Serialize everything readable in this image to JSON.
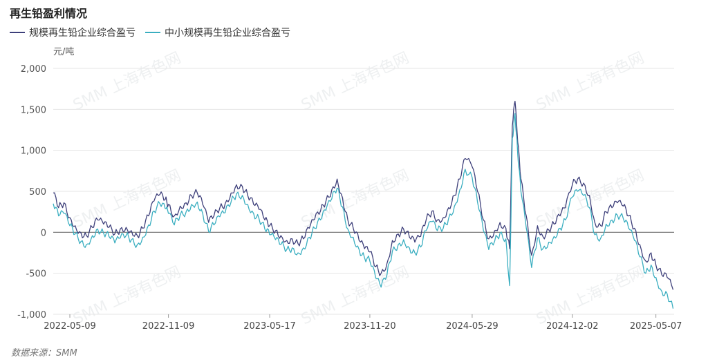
{
  "title": "再生铅盈利情况",
  "source": "数据来源：SMM",
  "watermark": "SMM 上海有色网",
  "chart_data": {
    "type": "line",
    "unit": "元/吨",
    "ylim": [
      -1000,
      2000
    ],
    "yticks": [
      -1000,
      -500,
      0,
      500,
      1000,
      1500,
      2000
    ],
    "ytick_labels": [
      "-1,000",
      "-500",
      "0",
      "500",
      "1,000",
      "1,500",
      "2,000"
    ],
    "xlim": [
      "2022-04-08",
      "2025-06-10"
    ],
    "xticks": [
      "2022-05-09",
      "2022-11-09",
      "2023-05-17",
      "2023-11-20",
      "2024-05-29",
      "2024-12-02",
      "2025-05-07"
    ],
    "grid": true,
    "legend": "top-left",
    "series": [
      {
        "name": "规模再生铅企业综合盈亏",
        "color": "#3d3f7a",
        "points": [
          [
            "2022-04-08",
            480
          ],
          [
            "2022-04-18",
            300
          ],
          [
            "2022-04-28",
            360
          ],
          [
            "2022-05-09",
            180
          ],
          [
            "2022-05-19",
            80
          ],
          [
            "2022-05-30",
            -10
          ],
          [
            "2022-06-09",
            -40
          ],
          [
            "2022-06-20",
            60
          ],
          [
            "2022-06-30",
            150
          ],
          [
            "2022-07-11",
            100
          ],
          [
            "2022-07-21",
            60
          ],
          [
            "2022-08-01",
            -20
          ],
          [
            "2022-08-11",
            40
          ],
          [
            "2022-08-22",
            60
          ],
          [
            "2022-09-01",
            20
          ],
          [
            "2022-09-12",
            -40
          ],
          [
            "2022-09-22",
            50
          ],
          [
            "2022-10-03",
            200
          ],
          [
            "2022-10-13",
            380
          ],
          [
            "2022-10-24",
            460
          ],
          [
            "2022-11-03",
            400
          ],
          [
            "2022-11-09",
            340
          ],
          [
            "2022-11-20",
            200
          ],
          [
            "2022-12-01",
            320
          ],
          [
            "2022-12-12",
            360
          ],
          [
            "2022-12-22",
            450
          ],
          [
            "2023-01-02",
            480
          ],
          [
            "2023-01-12",
            340
          ],
          [
            "2023-01-23",
            120
          ],
          [
            "2023-02-02",
            200
          ],
          [
            "2023-02-13",
            300
          ],
          [
            "2023-02-23",
            350
          ],
          [
            "2023-03-06",
            480
          ],
          [
            "2023-03-16",
            580
          ],
          [
            "2023-03-27",
            560
          ],
          [
            "2023-04-06",
            450
          ],
          [
            "2023-04-17",
            340
          ],
          [
            "2023-04-27",
            280
          ],
          [
            "2023-05-08",
            150
          ],
          [
            "2023-05-17",
            80
          ],
          [
            "2023-05-28",
            20
          ],
          [
            "2023-06-07",
            -40
          ],
          [
            "2023-06-18",
            -100
          ],
          [
            "2023-06-28",
            -80
          ],
          [
            "2023-07-09",
            -140
          ],
          [
            "2023-07-19",
            -80
          ],
          [
            "2023-07-30",
            50
          ],
          [
            "2023-08-09",
            160
          ],
          [
            "2023-08-20",
            260
          ],
          [
            "2023-08-30",
            380
          ],
          [
            "2023-09-10",
            520
          ],
          [
            "2023-09-20",
            650
          ],
          [
            "2023-09-30",
            420
          ],
          [
            "2023-10-10",
            150
          ],
          [
            "2023-10-20",
            50
          ],
          [
            "2023-10-31",
            -100
          ],
          [
            "2023-11-10",
            -200
          ],
          [
            "2023-11-20",
            -240
          ],
          [
            "2023-12-01",
            -420
          ],
          [
            "2023-12-11",
            -500
          ],
          [
            "2023-12-22",
            -380
          ],
          [
            "2024-01-01",
            -100
          ],
          [
            "2024-01-12",
            -20
          ],
          [
            "2024-01-22",
            40
          ],
          [
            "2024-02-02",
            -60
          ],
          [
            "2024-02-12",
            -120
          ],
          [
            "2024-02-23",
            -50
          ],
          [
            "2024-03-04",
            150
          ],
          [
            "2024-03-15",
            260
          ],
          [
            "2024-03-25",
            150
          ],
          [
            "2024-04-05",
            180
          ],
          [
            "2024-04-15",
            300
          ],
          [
            "2024-04-26",
            450
          ],
          [
            "2024-05-06",
            650
          ],
          [
            "2024-05-16",
            900
          ],
          [
            "2024-05-29",
            800
          ],
          [
            "2024-06-08",
            500
          ],
          [
            "2024-06-19",
            150
          ],
          [
            "2024-06-29",
            -80
          ],
          [
            "2024-07-10",
            20
          ],
          [
            "2024-07-20",
            120
          ],
          [
            "2024-07-31",
            50
          ],
          [
            "2024-08-07",
            -200
          ],
          [
            "2024-08-12",
            1300
          ],
          [
            "2024-08-17",
            1600
          ],
          [
            "2024-08-22",
            1100
          ],
          [
            "2024-08-28",
            650
          ],
          [
            "2024-09-07",
            200
          ],
          [
            "2024-09-17",
            -280
          ],
          [
            "2024-09-28",
            80
          ],
          [
            "2024-10-08",
            -50
          ],
          [
            "2024-10-19",
            30
          ],
          [
            "2024-10-29",
            100
          ],
          [
            "2024-11-09",
            200
          ],
          [
            "2024-11-19",
            300
          ],
          [
            "2024-12-02",
            580
          ],
          [
            "2024-12-12",
            650
          ],
          [
            "2024-12-23",
            600
          ],
          [
            "2025-01-03",
            450
          ],
          [
            "2025-01-13",
            120
          ],
          [
            "2025-01-24",
            80
          ],
          [
            "2025-02-03",
            250
          ],
          [
            "2025-02-14",
            300
          ],
          [
            "2025-02-24",
            360
          ],
          [
            "2025-03-07",
            320
          ],
          [
            "2025-03-17",
            200
          ],
          [
            "2025-03-28",
            50
          ],
          [
            "2025-04-07",
            -150
          ],
          [
            "2025-04-18",
            -350
          ],
          [
            "2025-04-28",
            -250
          ],
          [
            "2025-05-07",
            -400
          ],
          [
            "2025-05-18",
            -520
          ],
          [
            "2025-05-28",
            -550
          ],
          [
            "2025-06-08",
            -700
          ]
        ]
      },
      {
        "name": "中小规模再生铅企业综合盈亏",
        "color": "#3aaec0",
        "points": [
          [
            "2022-04-08",
            350
          ],
          [
            "2022-04-18",
            200
          ],
          [
            "2022-04-28",
            230
          ],
          [
            "2022-05-09",
            80
          ],
          [
            "2022-05-19",
            -20
          ],
          [
            "2022-05-30",
            -110
          ],
          [
            "2022-06-09",
            -150
          ],
          [
            "2022-06-20",
            -40
          ],
          [
            "2022-06-30",
            40
          ],
          [
            "2022-07-11",
            -10
          ],
          [
            "2022-07-21",
            -50
          ],
          [
            "2022-08-01",
            -130
          ],
          [
            "2022-08-11",
            -70
          ],
          [
            "2022-08-22",
            -40
          ],
          [
            "2022-09-01",
            -90
          ],
          [
            "2022-09-12",
            -150
          ],
          [
            "2022-09-22",
            -60
          ],
          [
            "2022-10-03",
            90
          ],
          [
            "2022-10-13",
            260
          ],
          [
            "2022-10-24",
            350
          ],
          [
            "2022-11-03",
            290
          ],
          [
            "2022-11-09",
            230
          ],
          [
            "2022-11-20",
            90
          ],
          [
            "2022-12-01",
            210
          ],
          [
            "2022-12-12",
            250
          ],
          [
            "2022-12-22",
            340
          ],
          [
            "2023-01-02",
            370
          ],
          [
            "2023-01-12",
            230
          ],
          [
            "2023-01-23",
            10
          ],
          [
            "2023-02-02",
            90
          ],
          [
            "2023-02-13",
            190
          ],
          [
            "2023-02-23",
            240
          ],
          [
            "2023-03-06",
            370
          ],
          [
            "2023-03-16",
            470
          ],
          [
            "2023-03-27",
            450
          ],
          [
            "2023-04-06",
            340
          ],
          [
            "2023-04-17",
            230
          ],
          [
            "2023-04-27",
            170
          ],
          [
            "2023-05-08",
            40
          ],
          [
            "2023-05-17",
            -30
          ],
          [
            "2023-05-28",
            -90
          ],
          [
            "2023-06-07",
            -150
          ],
          [
            "2023-06-18",
            -210
          ],
          [
            "2023-06-28",
            -190
          ],
          [
            "2023-07-09",
            -250
          ],
          [
            "2023-07-19",
            -190
          ],
          [
            "2023-07-30",
            -60
          ],
          [
            "2023-08-09",
            50
          ],
          [
            "2023-08-20",
            150
          ],
          [
            "2023-08-30",
            270
          ],
          [
            "2023-09-10",
            410
          ],
          [
            "2023-09-20",
            540
          ],
          [
            "2023-09-30",
            310
          ],
          [
            "2023-10-10",
            40
          ],
          [
            "2023-10-20",
            -60
          ],
          [
            "2023-10-31",
            -210
          ],
          [
            "2023-11-10",
            -310
          ],
          [
            "2023-11-20",
            -350
          ],
          [
            "2023-12-01",
            -560
          ],
          [
            "2023-12-11",
            -670
          ],
          [
            "2023-12-22",
            -520
          ],
          [
            "2024-01-01",
            -230
          ],
          [
            "2024-01-12",
            -150
          ],
          [
            "2024-01-22",
            -90
          ],
          [
            "2024-02-02",
            -190
          ],
          [
            "2024-02-12",
            -250
          ],
          [
            "2024-02-23",
            -180
          ],
          [
            "2024-03-04",
            20
          ],
          [
            "2024-03-15",
            130
          ],
          [
            "2024-03-25",
            20
          ],
          [
            "2024-04-05",
            50
          ],
          [
            "2024-04-15",
            170
          ],
          [
            "2024-04-26",
            320
          ],
          [
            "2024-05-06",
            520
          ],
          [
            "2024-05-16",
            770
          ],
          [
            "2024-05-29",
            670
          ],
          [
            "2024-06-08",
            370
          ],
          [
            "2024-06-19",
            20
          ],
          [
            "2024-06-29",
            -210
          ],
          [
            "2024-07-10",
            -110
          ],
          [
            "2024-07-20",
            -10
          ],
          [
            "2024-07-31",
            -80
          ],
          [
            "2024-08-07",
            -650
          ],
          [
            "2024-08-12",
            1150
          ],
          [
            "2024-08-17",
            1450
          ],
          [
            "2024-08-22",
            950
          ],
          [
            "2024-08-28",
            500
          ],
          [
            "2024-09-07",
            50
          ],
          [
            "2024-09-17",
            -430
          ],
          [
            "2024-09-28",
            -70
          ],
          [
            "2024-10-08",
            -200
          ],
          [
            "2024-10-19",
            -120
          ],
          [
            "2024-10-29",
            -50
          ],
          [
            "2024-11-09",
            50
          ],
          [
            "2024-11-19",
            150
          ],
          [
            "2024-12-02",
            430
          ],
          [
            "2024-12-12",
            500
          ],
          [
            "2024-12-23",
            450
          ],
          [
            "2025-01-03",
            300
          ],
          [
            "2025-01-13",
            -30
          ],
          [
            "2025-01-24",
            -70
          ],
          [
            "2025-02-03",
            100
          ],
          [
            "2025-02-14",
            150
          ],
          [
            "2025-02-24",
            210
          ],
          [
            "2025-03-07",
            170
          ],
          [
            "2025-03-17",
            50
          ],
          [
            "2025-03-28",
            -100
          ],
          [
            "2025-04-07",
            -300
          ],
          [
            "2025-04-18",
            -500
          ],
          [
            "2025-04-28",
            -400
          ],
          [
            "2025-05-07",
            -550
          ],
          [
            "2025-05-18",
            -720
          ],
          [
            "2025-05-28",
            -750
          ],
          [
            "2025-06-08",
            -930
          ]
        ]
      }
    ]
  }
}
